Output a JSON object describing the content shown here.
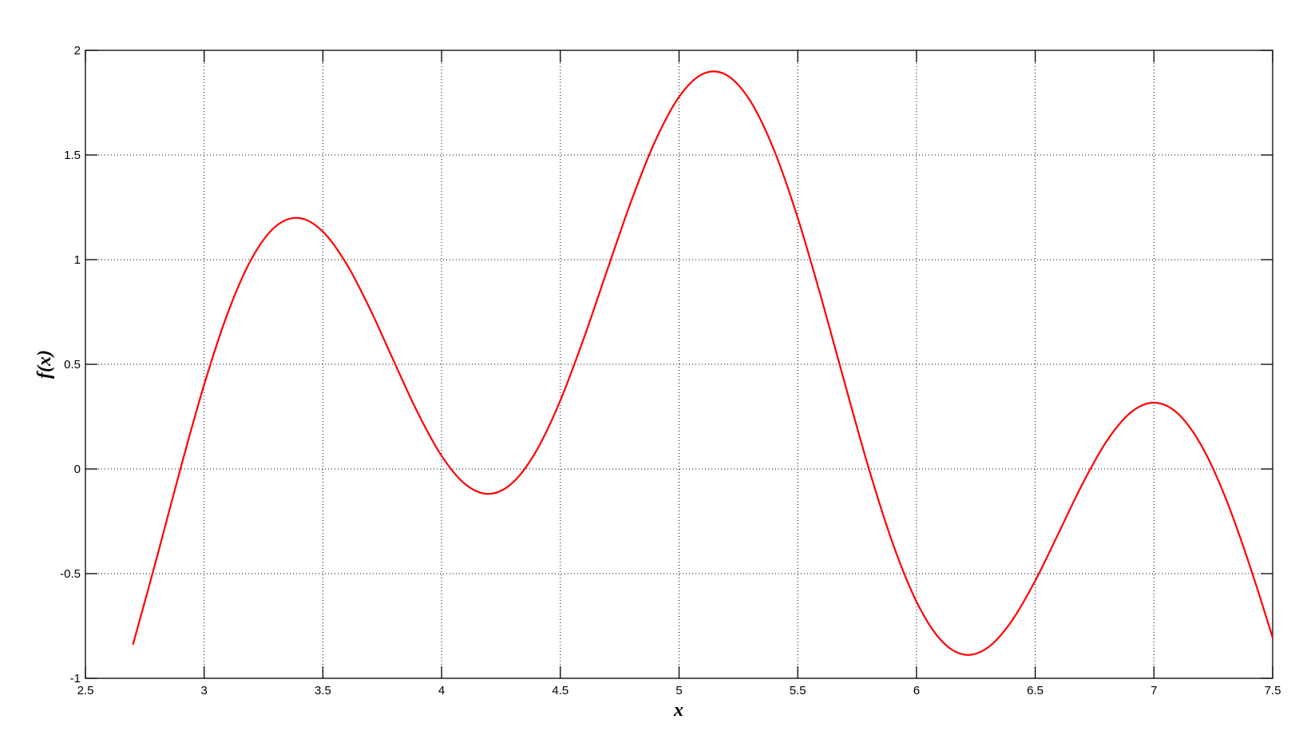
{
  "chart_data": {
    "type": "line",
    "title": "",
    "xlabel": "x",
    "ylabel": "f(x)",
    "xlim": [
      2.5,
      7.5
    ],
    "ylim": [
      -1,
      2
    ],
    "xticks": [
      2.5,
      3,
      3.5,
      4,
      4.5,
      5,
      5.5,
      6,
      6.5,
      7,
      7.5
    ],
    "xtick_labels": [
      "2.5",
      "3",
      "3.5",
      "4",
      "4.5",
      "5",
      "5.5",
      "6",
      "6.5",
      "7",
      "7.5"
    ],
    "yticks": [
      -1,
      -0.5,
      0,
      0.5,
      1,
      1.5,
      2
    ],
    "ytick_labels": [
      "-1",
      "-0.5",
      "0",
      "0.5",
      "1",
      "1.5",
      "2"
    ],
    "grid": true,
    "grid_style": "dotted",
    "line_color": "#ff0000",
    "series": [
      {
        "x": [
          2.7,
          2.8,
          2.9,
          3.0,
          3.1,
          3.2,
          3.3,
          3.4,
          3.5,
          3.6,
          3.7,
          3.8,
          3.9,
          4.0,
          4.1,
          4.2,
          4.3,
          4.4,
          4.5,
          4.6,
          4.7,
          4.8,
          4.9,
          5.0,
          5.1,
          5.2,
          5.3,
          5.4,
          5.5,
          5.6,
          5.7,
          5.8,
          5.9,
          6.0,
          6.1,
          6.2,
          6.3,
          6.4,
          6.5,
          6.6,
          6.7,
          6.8,
          6.9,
          7.0,
          7.1,
          7.2,
          7.3,
          7.4,
          7.5
        ],
        "y": [
          -0.8395,
          -0.4264,
          0.0003,
          0.4029,
          0.7469,
          1.0049,
          1.1577,
          1.1989,
          1.1339,
          0.9791,
          0.7608,
          0.5118,
          0.2676,
          0.0628,
          -0.073,
          -0.119,
          -0.0647,
          0.0884,
          0.3272,
          0.6277,
          0.9586,
          1.2841,
          1.5678,
          1.7771,
          1.8872,
          1.882,
          1.7581,
          1.5238,
          1.1991,
          0.8132,
          0.4009,
          -0.0005,
          -0.3553,
          -0.6335,
          -0.814,
          -0.8868,
          -0.8535,
          -0.7279,
          -0.534,
          -0.3027,
          -0.0693,
          0.1312,
          0.2678,
          0.3168,
          0.2655,
          0.1118,
          -0.1334,
          -0.4492,
          -0.8056
        ]
      }
    ]
  }
}
